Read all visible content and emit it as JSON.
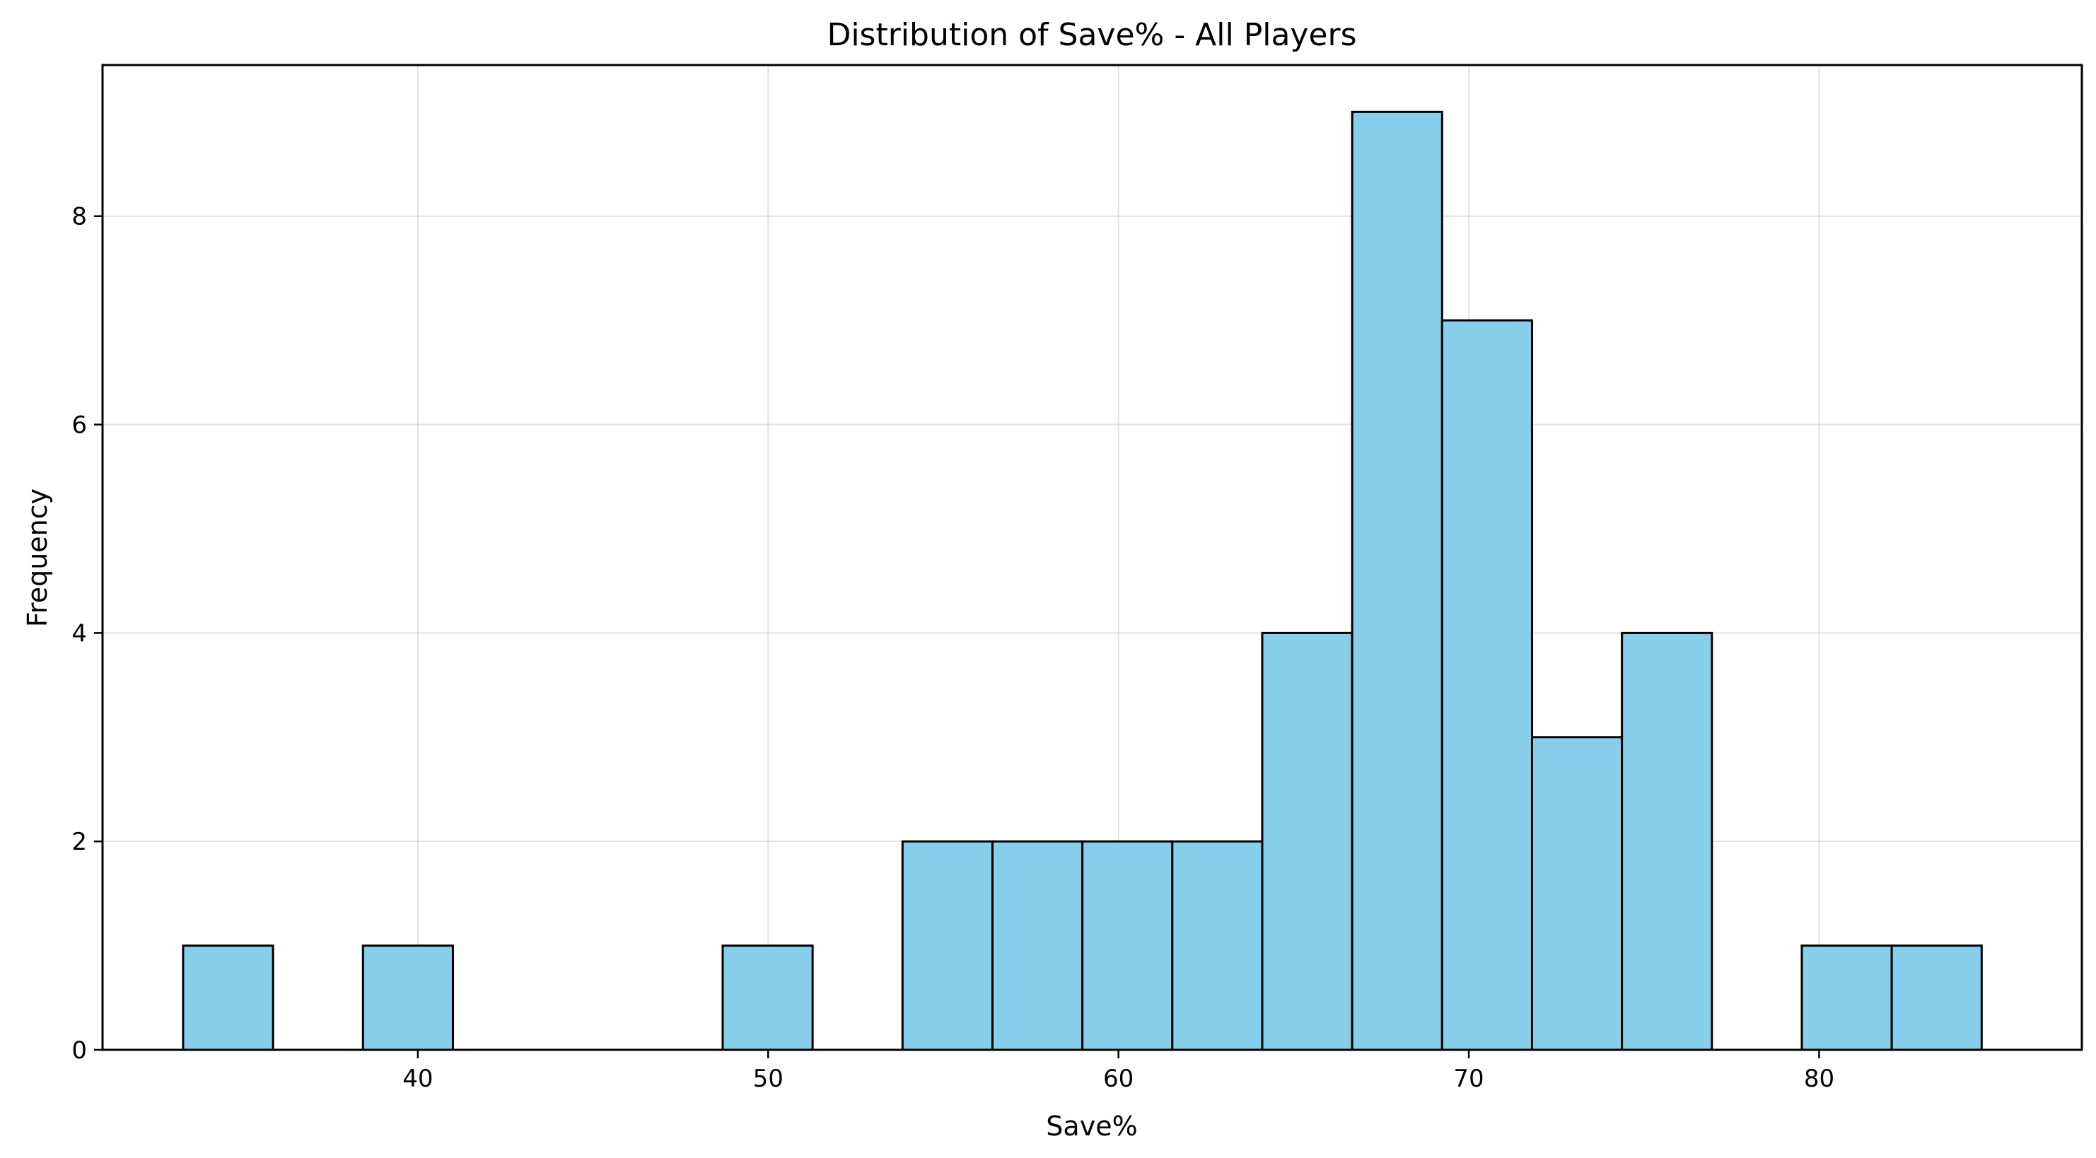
{
  "chart_data": {
    "type": "bar",
    "title": "Distribution of Save% - All Players",
    "xlabel": "Save%",
    "ylabel": "Frequency",
    "xlim": [
      31.0,
      87.5
    ],
    "ylim": [
      0,
      9.45
    ],
    "xticks": [
      40,
      50,
      60,
      70,
      80
    ],
    "yticks": [
      0,
      2,
      4,
      6,
      8
    ],
    "grid": true,
    "bar_color": "#87ceeb",
    "edge_color": "#000000",
    "bin_start": 33.3,
    "bin_width": 2.567,
    "values": [
      1,
      0,
      1,
      0,
      0,
      0,
      1,
      0,
      2,
      2,
      2,
      2,
      4,
      9,
      7,
      3,
      4,
      0,
      1,
      1
    ]
  }
}
